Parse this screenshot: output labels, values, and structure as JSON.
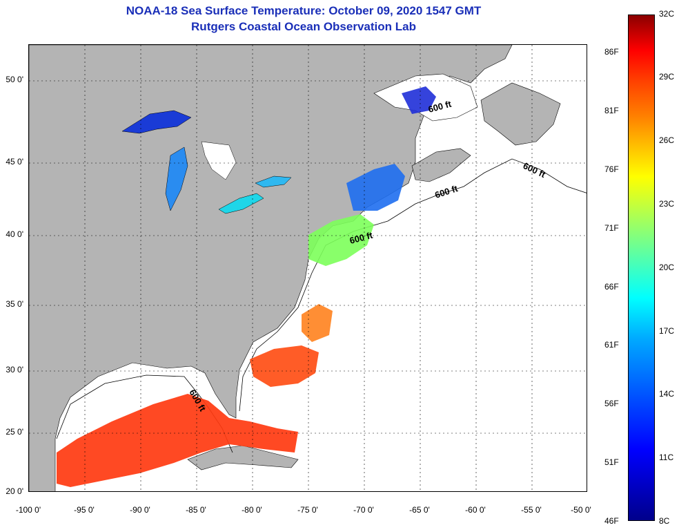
{
  "header": {
    "title": "NOAA-18 Sea Surface Temperature:  October 09, 2020 1547 GMT",
    "subtitle": "Rutgers Coastal Ocean Observation Lab"
  },
  "map": {
    "land_color": "#b4b4b4",
    "no_data_color": "#ffffff",
    "latitude_labels": [
      "50 0'",
      "45 0'",
      "40 0'",
      "35 0'",
      "30 0'",
      "25 0'",
      "20 0'"
    ],
    "longitude_labels": [
      "-100 0'",
      "-95 0'",
      "-90 0'",
      "-85 0'",
      "-80 0'",
      "-75 0'",
      "-70 0'",
      "-65 0'",
      "-60 0'",
      "-55 0'",
      "-50 0'"
    ],
    "contour_labels": [
      "600 ft",
      "600 ft",
      "600 ft",
      "600 ft",
      "600 ft"
    ]
  },
  "colorbar": {
    "celsius_labels": [
      "32C",
      "29C",
      "26C",
      "23C",
      "20C",
      "17C",
      "14C",
      "11C",
      "8C"
    ],
    "fahrenheit_labels": [
      "86F",
      "81F",
      "76F",
      "71F",
      "66F",
      "61F",
      "56F",
      "51F",
      "46F"
    ]
  }
}
